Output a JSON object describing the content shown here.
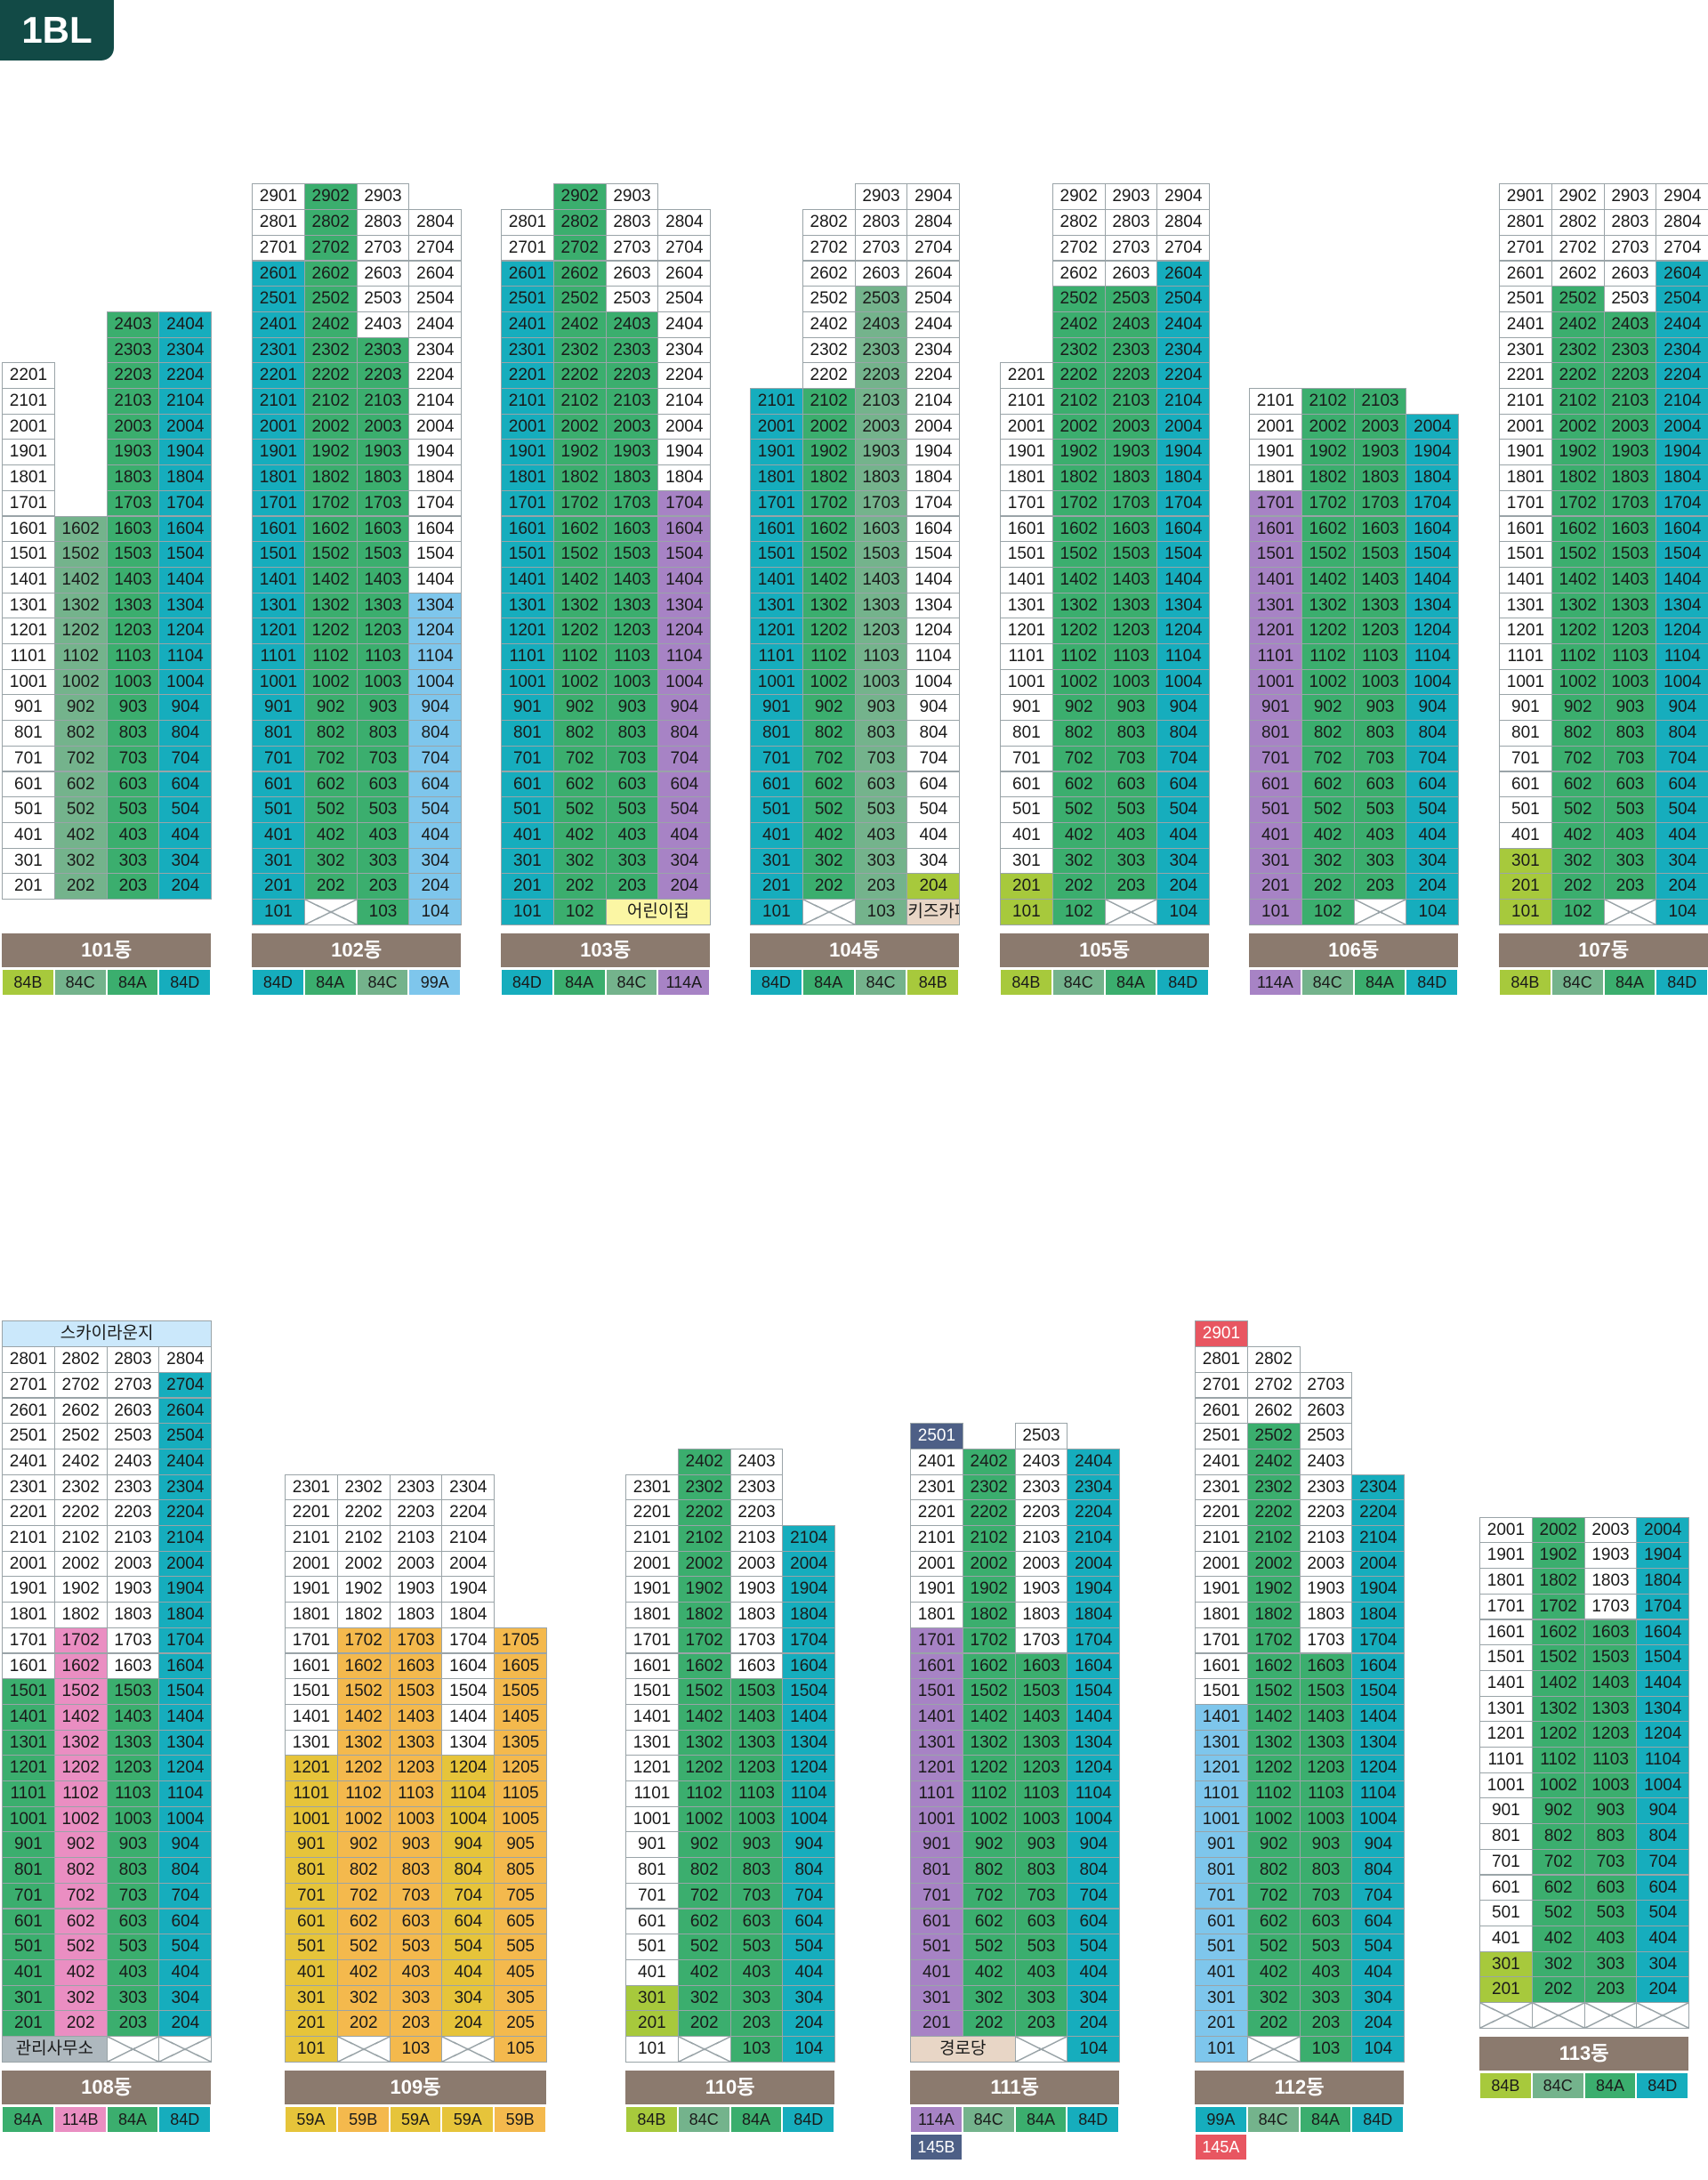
{
  "block_title": "1BL",
  "colors": {
    "white": "#ffffff",
    "teal": "#16adbd",
    "green": "#3bae6e",
    "sage": "#74b38c",
    "lime": "#a7c93c",
    "sky": "#7ec6ec",
    "purple": "#a783c5",
    "pink": "#ea8ec2",
    "orange": "#f4b94d",
    "yellow": "#e6c43a",
    "red": "#e85661",
    "navy": "#4d5f86",
    "cream": "#fbf6a4",
    "beige": "#e8d6c6",
    "gray": "#aeb8be",
    "skylite": "#cbe8fb",
    "label_bg": "#8b7a6e"
  },
  "buildings": [
    {
      "name": "101동",
      "lines": 4,
      "ground": "Column 1: 101 (empty). Column 2: 102 (empty). Column 3: 103 (empty). Column 4: 104 (empty).",
      "types": [
        {
          "label": "84B",
          "color": "lime"
        },
        {
          "label": "84C",
          "color": "sage"
        },
        {
          "label": "84A",
          "color": "green"
        },
        {
          "label": "84D",
          "color": "teal"
        }
      ],
      "segments": [
        [
          [
            2,
            22,
            "white"
          ]
        ],
        [
          [
            2,
            16,
            "sage"
          ]
        ],
        [
          [
            2,
            24,
            "green"
          ]
        ],
        [
          [
            2,
            24,
            "teal"
          ]
        ]
      ],
      "extra": []
    },
    {
      "name": "102동",
      "lines": 4,
      "types": [
        {
          "label": "84D",
          "color": "teal"
        },
        {
          "label": "84A",
          "color": "green"
        },
        {
          "label": "84C",
          "color": "sage"
        },
        {
          "label": "99A",
          "color": "sky"
        }
      ],
      "segments": [
        [
          [
            1,
            26,
            "teal"
          ],
          [
            27,
            29,
            "white"
          ]
        ],
        [
          [
            1,
            1,
            "empty"
          ],
          [
            2,
            29,
            "green"
          ]
        ],
        [
          [
            1,
            23,
            "green"
          ],
          [
            24,
            29,
            "white"
          ]
        ],
        [
          [
            1,
            13,
            "sky"
          ],
          [
            14,
            28,
            "white"
          ]
        ]
      ],
      "extra": []
    },
    {
      "name": "103동",
      "lines": 4,
      "types": [
        {
          "label": "84D",
          "color": "teal"
        },
        {
          "label": "84A",
          "color": "green"
        },
        {
          "label": "84C",
          "color": "sage"
        },
        {
          "label": "114A",
          "color": "purple"
        }
      ],
      "segments": [
        [
          [
            1,
            26,
            "teal"
          ],
          [
            27,
            28,
            "white"
          ]
        ],
        [
          [
            1,
            29,
            "green"
          ]
        ],
        [
          [
            1,
            24,
            "green"
          ],
          [
            25,
            29,
            "white"
          ]
        ],
        [
          [
            2,
            17,
            "purple"
          ],
          [
            18,
            28,
            "white"
          ]
        ]
      ],
      "extra": [
        {
          "col": 2,
          "span": 2,
          "floor": 1,
          "text": "어린이집",
          "color": "cream"
        }
      ]
    },
    {
      "name": "104동",
      "lines": 4,
      "types": [
        {
          "label": "84D",
          "color": "teal"
        },
        {
          "label": "84A",
          "color": "green"
        },
        {
          "label": "84C",
          "color": "sage"
        },
        {
          "label": "84B",
          "color": "lime"
        }
      ],
      "segments": [
        [
          [
            1,
            21,
            "teal"
          ]
        ],
        [
          [
            1,
            1,
            "empty"
          ],
          [
            2,
            21,
            "green"
          ],
          [
            22,
            28,
            "white"
          ]
        ],
        [
          [
            1,
            25,
            "sage"
          ],
          [
            26,
            29,
            "white"
          ]
        ],
        [
          [
            2,
            2,
            "lime"
          ],
          [
            3,
            29,
            "white"
          ]
        ]
      ],
      "extra": [
        {
          "col": 3,
          "span": 1,
          "floor": 1,
          "text": "키즈카페",
          "color": "beige"
        }
      ]
    },
    {
      "name": "105동",
      "lines": 4,
      "types": [
        {
          "label": "84B",
          "color": "lime"
        },
        {
          "label": "84C",
          "color": "sage"
        },
        {
          "label": "84A",
          "color": "green"
        },
        {
          "label": "84D",
          "color": "teal"
        }
      ],
      "segments": [
        [
          [
            1,
            2,
            "lime"
          ],
          [
            3,
            22,
            "white"
          ]
        ],
        [
          [
            1,
            25,
            "green"
          ],
          [
            26,
            29,
            "white"
          ]
        ],
        [
          [
            1,
            1,
            "empty"
          ],
          [
            2,
            25,
            "green"
          ],
          [
            26,
            29,
            "white"
          ]
        ],
        [
          [
            1,
            26,
            "teal"
          ],
          [
            27,
            29,
            "white"
          ]
        ]
      ],
      "extra": []
    },
    {
      "name": "106동",
      "lines": 4,
      "types": [
        {
          "label": "114A",
          "color": "purple"
        },
        {
          "label": "84C",
          "color": "sage"
        },
        {
          "label": "84A",
          "color": "green"
        },
        {
          "label": "84D",
          "color": "teal"
        }
      ],
      "segments": [
        [
          [
            1,
            17,
            "purple"
          ],
          [
            18,
            21,
            "white"
          ]
        ],
        [
          [
            1,
            21,
            "green"
          ]
        ],
        [
          [
            1,
            1,
            "empty"
          ],
          [
            2,
            21,
            "green"
          ]
        ],
        [
          [
            1,
            20,
            "teal"
          ]
        ]
      ],
      "extra": []
    },
    {
      "name": "107동",
      "lines": 4,
      "types": [
        {
          "label": "84B",
          "color": "lime"
        },
        {
          "label": "84C",
          "color": "sage"
        },
        {
          "label": "84A",
          "color": "green"
        },
        {
          "label": "84D",
          "color": "teal"
        }
      ],
      "segments": [
        [
          [
            1,
            3,
            "lime"
          ],
          [
            4,
            29,
            "white"
          ]
        ],
        [
          [
            1,
            25,
            "green"
          ],
          [
            26,
            29,
            "white"
          ]
        ],
        [
          [
            1,
            1,
            "empty"
          ],
          [
            2,
            24,
            "green"
          ],
          [
            25,
            29,
            "white"
          ]
        ],
        [
          [
            1,
            26,
            "teal"
          ],
          [
            27,
            29,
            "white"
          ]
        ]
      ],
      "extra": []
    },
    {
      "name": "108동",
      "lines": 4,
      "types": [
        {
          "label": "84A",
          "color": "green"
        },
        {
          "label": "114B",
          "color": "pink"
        },
        {
          "label": "84A",
          "color": "green"
        },
        {
          "label": "84D",
          "color": "teal"
        }
      ],
      "segments": [
        [
          [
            2,
            15,
            "green"
          ],
          [
            16,
            28,
            "white"
          ]
        ],
        [
          [
            2,
            17,
            "pink"
          ],
          [
            18,
            28,
            "white"
          ]
        ],
        [
          [
            1,
            1,
            "empty"
          ],
          [
            2,
            15,
            "green"
          ],
          [
            16,
            28,
            "white"
          ]
        ],
        [
          [
            1,
            1,
            "empty"
          ],
          [
            2,
            27,
            "teal"
          ],
          [
            28,
            28,
            "white"
          ]
        ]
      ],
      "extra": [
        {
          "col": 0,
          "span": 2,
          "floor": 1,
          "text": "관리사무소",
          "color": "gray"
        },
        {
          "col": 0,
          "span": 4,
          "floor": 29,
          "text": "스카이라운지",
          "color": "skylite"
        }
      ]
    },
    {
      "name": "109동",
      "lines": 5,
      "types": [
        {
          "label": "59A",
          "color": "yellow"
        },
        {
          "label": "59B",
          "color": "orange"
        },
        {
          "label": "59A",
          "color": "yellow"
        },
        {
          "label": "59A",
          "color": "yellow"
        },
        {
          "label": "59B",
          "color": "orange"
        }
      ],
      "segments": [
        [
          [
            1,
            12,
            "yellow"
          ],
          [
            13,
            23,
            "white"
          ]
        ],
        [
          [
            1,
            1,
            "empty"
          ],
          [
            2,
            17,
            "orange"
          ],
          [
            18,
            23,
            "white"
          ]
        ],
        [
          [
            1,
            17,
            "orange"
          ],
          [
            18,
            23,
            "white"
          ]
        ],
        [
          [
            1,
            1,
            "empty"
          ],
          [
            2,
            12,
            "yellow"
          ],
          [
            13,
            23,
            "white"
          ]
        ],
        [
          [
            1,
            17,
            "orange"
          ]
        ]
      ],
      "extra": []
    },
    {
      "name": "110동",
      "lines": 4,
      "types": [
        {
          "label": "84B",
          "color": "lime"
        },
        {
          "label": "84C",
          "color": "sage"
        },
        {
          "label": "84A",
          "color": "green"
        },
        {
          "label": "84D",
          "color": "teal"
        }
      ],
      "segments": [
        [
          [
            1,
            1,
            "white"
          ],
          [
            2,
            3,
            "lime"
          ],
          [
            4,
            23,
            "white"
          ]
        ],
        [
          [
            1,
            1,
            "empty"
          ],
          [
            2,
            24,
            "green"
          ]
        ],
        [
          [
            1,
            15,
            "green"
          ],
          [
            16,
            24,
            "white"
          ]
        ],
        [
          [
            1,
            21,
            "teal"
          ]
        ]
      ],
      "extra": []
    },
    {
      "name": "111동",
      "lines": 4,
      "secondary": {
        "label": "145B",
        "color": "navy"
      },
      "types": [
        {
          "label": "114A",
          "color": "purple"
        },
        {
          "label": "84C",
          "color": "sage"
        },
        {
          "label": "84A",
          "color": "green"
        },
        {
          "label": "84D",
          "color": "teal"
        }
      ],
      "segments": [
        [
          [
            2,
            17,
            "purple"
          ],
          [
            18,
            25,
            "white"
          ]
        ],
        [
          [
            2,
            24,
            "green"
          ]
        ],
        [
          [
            1,
            1,
            "empty"
          ],
          [
            2,
            16,
            "green"
          ],
          [
            17,
            25,
            "white"
          ]
        ],
        [
          [
            1,
            24,
            "teal"
          ]
        ]
      ],
      "extra": [
        {
          "col": 0,
          "span": 2,
          "floor": 1,
          "text": "경로당",
          "color": "beige"
        },
        {
          "col": 0,
          "span": 1,
          "floor": 25,
          "text": "2501",
          "color": "navy"
        }
      ]
    },
    {
      "name": "112동",
      "lines": 4,
      "secondary": {
        "label": "145A",
        "color": "red"
      },
      "types": [
        {
          "label": "99A",
          "color": "teal"
        },
        {
          "label": "84C",
          "color": "sage"
        },
        {
          "label": "84A",
          "color": "green"
        },
        {
          "label": "84D",
          "color": "teal"
        }
      ],
      "segments": [
        [
          [
            1,
            14,
            "sky"
          ],
          [
            15,
            28,
            "white"
          ]
        ],
        [
          [
            1,
            1,
            "empty"
          ],
          [
            2,
            25,
            "green"
          ],
          [
            26,
            28,
            "white"
          ]
        ],
        [
          [
            1,
            16,
            "green"
          ],
          [
            17,
            27,
            "white"
          ]
        ],
        [
          [
            1,
            23,
            "teal"
          ]
        ]
      ],
      "extra": [
        {
          "col": 0,
          "span": 1,
          "floor": 29,
          "text": "2901",
          "color": "red"
        }
      ]
    },
    {
      "name": "113동",
      "lines": 4,
      "types": [
        {
          "label": "84B",
          "color": "lime"
        },
        {
          "label": "84C",
          "color": "sage"
        },
        {
          "label": "84A",
          "color": "green"
        },
        {
          "label": "84D",
          "color": "teal"
        }
      ],
      "segments": [
        [
          [
            1,
            1,
            "empty"
          ],
          [
            2,
            3,
            "lime"
          ],
          [
            4,
            20,
            "white"
          ]
        ],
        [
          [
            1,
            1,
            "empty"
          ],
          [
            2,
            20,
            "green"
          ]
        ],
        [
          [
            1,
            1,
            "empty"
          ],
          [
            2,
            16,
            "green"
          ],
          [
            17,
            20,
            "white"
          ]
        ],
        [
          [
            1,
            1,
            "empty"
          ],
          [
            2,
            20,
            "teal"
          ]
        ]
      ],
      "extra": []
    }
  ]
}
